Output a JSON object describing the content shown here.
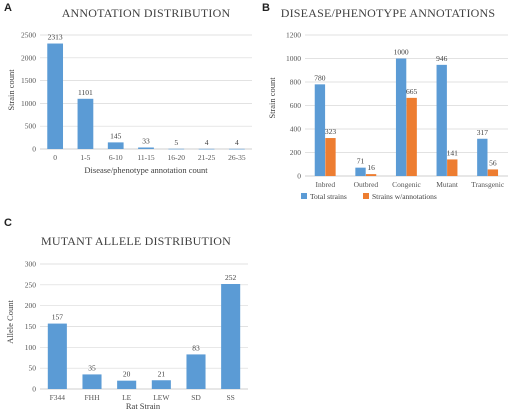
{
  "panel_letters": [
    "A",
    "B",
    "C"
  ],
  "colors": {
    "blue": "#5b9bd5",
    "orange": "#ed7d31"
  },
  "chart_data": [
    {
      "type": "bar",
      "title": "ANNOTATION DISTRIBUTION",
      "xlabel": "Disease/phenotype annotation count",
      "ylabel": "Strain count",
      "categories": [
        "0",
        "1-5",
        "6-10",
        "11-15",
        "16-20",
        "21-25",
        "26-35"
      ],
      "series": [
        {
          "values": [
            2313,
            1101,
            145,
            33,
            5,
            4,
            4
          ],
          "color": "#5b9bd5"
        }
      ],
      "ylim": [
        0,
        2500
      ],
      "yticks": [
        0,
        500,
        1000,
        1500,
        2000,
        2500
      ],
      "grid": true,
      "legend": "none"
    },
    {
      "type": "bar",
      "title": "DISEASE/PHENOTYPE ANNOTATIONS",
      "xlabel": "",
      "ylabel": "Strain count",
      "categories": [
        "Inbred",
        "Outbred",
        "Congenic",
        "Mutant",
        "Transgenic"
      ],
      "series": [
        {
          "name": "Total strains",
          "values": [
            780,
            71,
            1000,
            946,
            317
          ],
          "color": "#5b9bd5"
        },
        {
          "name": "Strains w/annotations",
          "values": [
            323,
            16,
            665,
            141,
            56
          ],
          "color": "#ed7d31"
        }
      ],
      "ylim": [
        0,
        1200
      ],
      "yticks": [
        0,
        200,
        400,
        600,
        800,
        1000,
        1200
      ],
      "grid": true,
      "legend": "bottom"
    },
    {
      "type": "bar",
      "title": "MUTANT ALLELE DISTRIBUTION",
      "xlabel": "Rat Strain",
      "ylabel": "Allele Count",
      "categories": [
        "F344",
        "FHH",
        "LE",
        "LEW",
        "SD",
        "SS"
      ],
      "series": [
        {
          "values": [
            157,
            35,
            20,
            21,
            83,
            252
          ],
          "color": "#5b9bd5"
        }
      ],
      "ylim": [
        0,
        300
      ],
      "yticks": [
        0,
        50,
        100,
        150,
        200,
        250,
        300
      ],
      "grid": true,
      "legend": "none"
    }
  ]
}
